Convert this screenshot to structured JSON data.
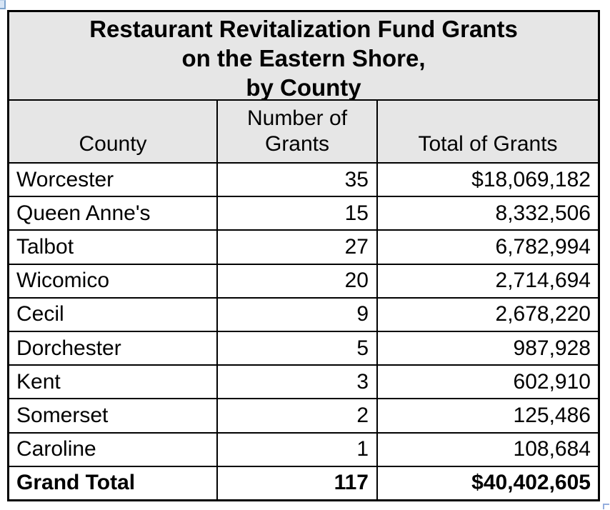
{
  "title": {
    "line1": "Restaurant Revitalization Fund Grants",
    "line2": "on the Eastern Shore,",
    "line3": "by County"
  },
  "columns": {
    "county": "County",
    "grants": "Number of Grants",
    "total": "Total of Grants"
  },
  "rows": [
    {
      "county": "Worcester",
      "grants": "35",
      "total": "$18,069,182"
    },
    {
      "county": "Queen Anne's",
      "grants": "15",
      "total": "8,332,506"
    },
    {
      "county": "Talbot",
      "grants": "27",
      "total": "6,782,994"
    },
    {
      "county": "Wicomico",
      "grants": "20",
      "total": "2,714,694"
    },
    {
      "county": "Cecil",
      "grants": "9",
      "total": "2,678,220"
    },
    {
      "county": "Dorchester",
      "grants": "5",
      "total": "987,928"
    },
    {
      "county": "Kent",
      "grants": "3",
      "total": "602,910"
    },
    {
      "county": "Somerset",
      "grants": "2",
      "total": "125,486"
    },
    {
      "county": "Caroline",
      "grants": "1",
      "total": "108,684"
    }
  ],
  "grand_total": {
    "county": "Grand Total",
    "grants": "117",
    "total": "$40,402,605"
  },
  "colors": {
    "header_bg": "#e6e6e6",
    "border": "#000000",
    "selection_handle_fill": "#d8e6f6",
    "selection_handle_edge": "#7da3cc",
    "selection_corner": "#94aede"
  }
}
